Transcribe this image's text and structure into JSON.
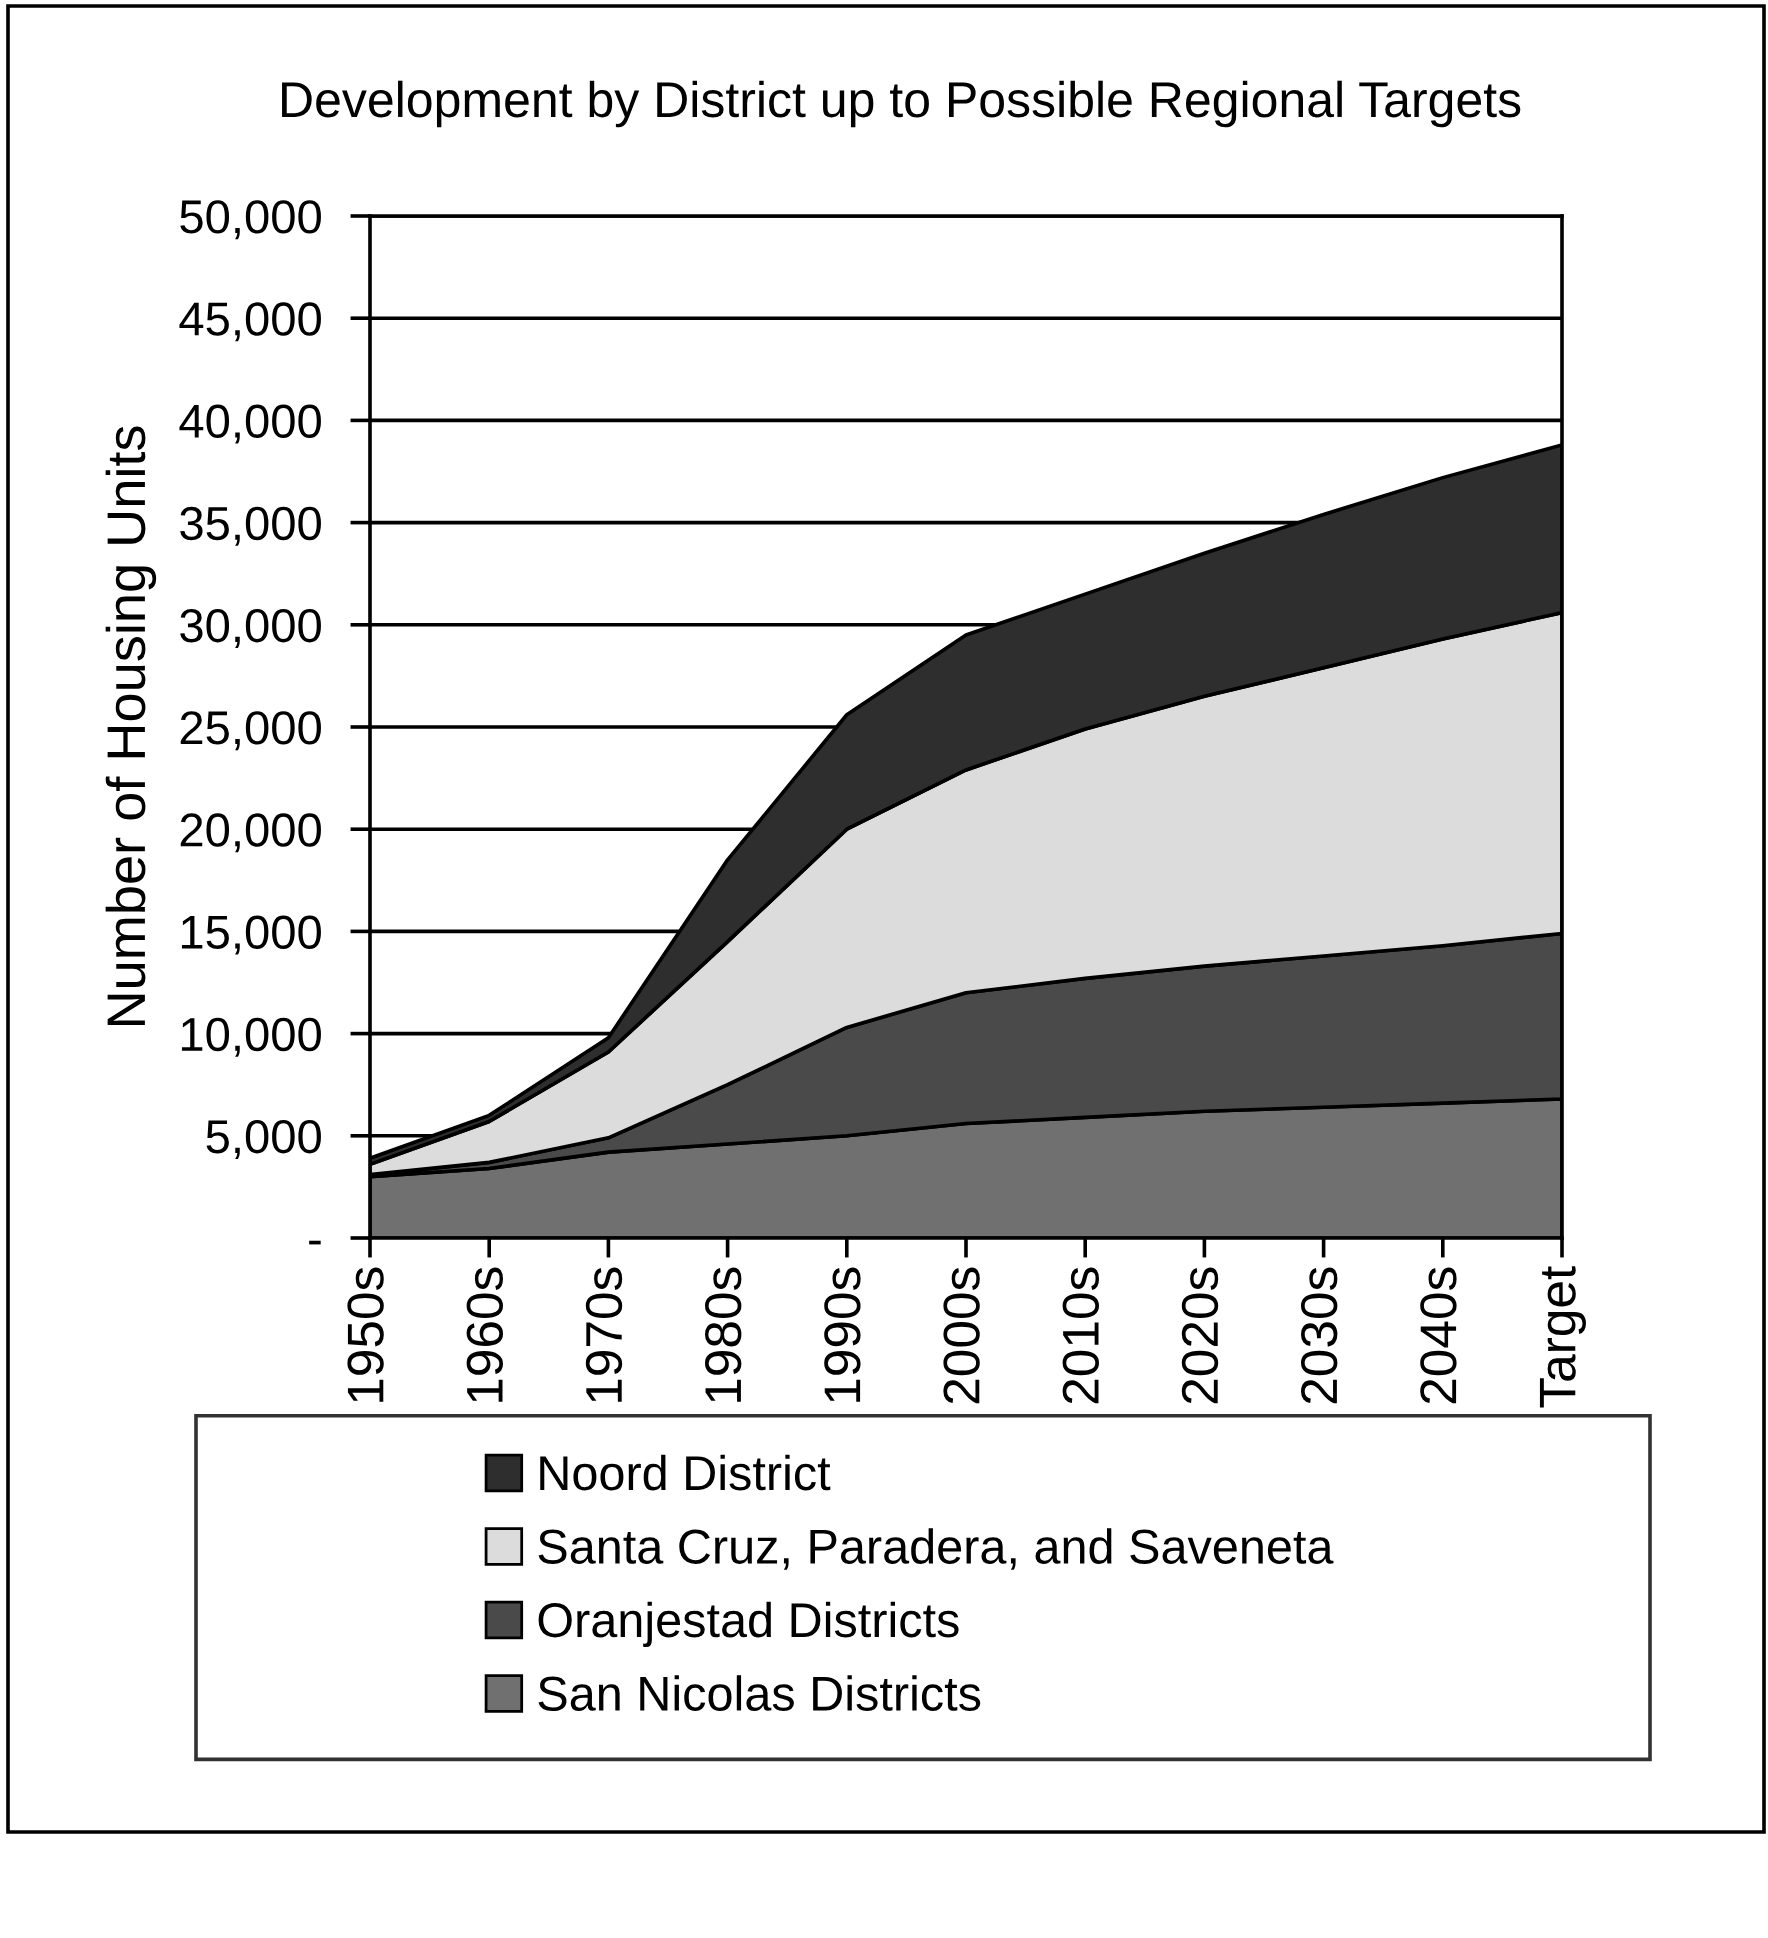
{
  "chart_data": {
    "type": "area",
    "title": "Development by District up to Possible Regional Targets",
    "ylabel": "Number of Housing Units",
    "categories": [
      "1950s",
      "1960s",
      "1970s",
      "1980s",
      "1990s",
      "2000s",
      "2010s",
      "2020s",
      "2030s",
      "2040s",
      "Target"
    ],
    "stacked": true,
    "series": [
      {
        "name": "San Nicolas Districts",
        "color": "#707070",
        "values": [
          3000,
          3400,
          4200,
          4600,
          5000,
          5600,
          5900,
          6200,
          6400,
          6600,
          6800
        ]
      },
      {
        "name": "Oranjestad Districts",
        "color": "#4a4a4a",
        "values": [
          100,
          300,
          700,
          2900,
          5300,
          6400,
          6800,
          7100,
          7400,
          7700,
          8100
        ]
      },
      {
        "name": "Santa Cruz, Paradera, and Saveneta",
        "color": "#dcdcdc",
        "values": [
          500,
          2000,
          4200,
          7000,
          9700,
          10900,
          12200,
          13200,
          14100,
          15000,
          15700
        ]
      },
      {
        "name": "Noord District",
        "color": "#2e2e2e",
        "values": [
          300,
          300,
          700,
          4000,
          5600,
          6600,
          6600,
          7000,
          7500,
          7900,
          8200
        ]
      }
    ],
    "ylim": [
      0,
      50000
    ],
    "yticks": [
      {
        "value": 0,
        "label": "-"
      },
      {
        "value": 5000,
        "label": "5,000"
      },
      {
        "value": 10000,
        "label": "10,000"
      },
      {
        "value": 15000,
        "label": "15,000"
      },
      {
        "value": 20000,
        "label": "20,000"
      },
      {
        "value": 25000,
        "label": "25,000"
      },
      {
        "value": 30000,
        "label": "30,000"
      },
      {
        "value": 35000,
        "label": "35,000"
      },
      {
        "value": 40000,
        "label": "40,000"
      },
      {
        "value": 45000,
        "label": "45,000"
      },
      {
        "value": 50000,
        "label": "50,000"
      }
    ],
    "grid": "y",
    "legend": "bottom"
  }
}
